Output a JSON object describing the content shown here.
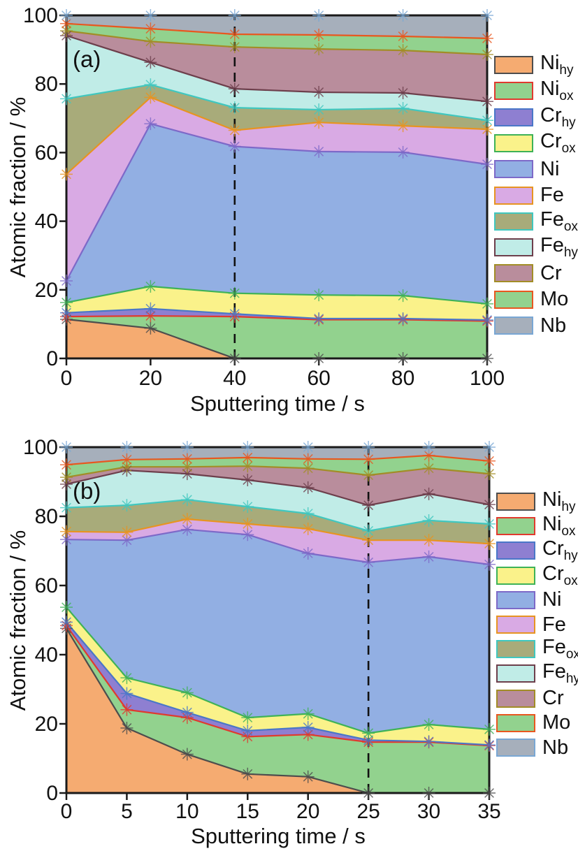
{
  "chart_data": [
    {
      "type": "area",
      "stacked": true,
      "panel_label": "(a)",
      "xlabel": "Sputtering time / s",
      "ylabel": "Atomic fraction / %",
      "xlim": [
        0,
        100
      ],
      "ylim": [
        0,
        100
      ],
      "grid": false,
      "legend_position": "right",
      "x": [
        0,
        20,
        40,
        60,
        80,
        100
      ],
      "x_ticks": [
        0,
        20,
        40,
        60,
        80,
        100
      ],
      "y_ticks": [
        0,
        20,
        40,
        60,
        80,
        100
      ],
      "guideline_x": 40,
      "series": [
        {
          "name": "Ni_hy",
          "label": "Ni",
          "sub": "hy",
          "fill": "#f5ab71",
          "line": "#4d4d4d",
          "values": [
            11.4,
            8.8,
            0,
            0,
            0,
            0
          ]
        },
        {
          "name": "Ni_ox",
          "label": "Ni",
          "sub": "ox",
          "fill": "#92d28e",
          "line": "#e03a2e",
          "values": [
            0.8,
            3.6,
            12.2,
            11.3,
            11.3,
            10.9
          ]
        },
        {
          "name": "Cr_hy",
          "label": "Cr",
          "sub": "hy",
          "fill": "#8e7fd1",
          "line": "#4a77c8",
          "values": [
            1.1,
            2.1,
            0.8,
            0.3,
            0.3,
            0.3
          ]
        },
        {
          "name": "Cr_ox",
          "label": "Cr",
          "sub": "ox",
          "fill": "#faf28a",
          "line": "#3eb257",
          "values": [
            3.0,
            6.5,
            6.0,
            6.9,
            6.7,
            4.7
          ]
        },
        {
          "name": "Ni",
          "label": "Ni",
          "sub": "",
          "fill": "#92afe3",
          "line": "#7d69c8",
          "values": [
            6.3,
            47.4,
            42.8,
            41.8,
            41.8,
            40.7
          ]
        },
        {
          "name": "Fe",
          "label": "Fe",
          "sub": "",
          "fill": "#d9aae4",
          "line": "#e79421",
          "values": [
            31.1,
            7.7,
            4.7,
            8.5,
            7.7,
            10.2
          ]
        },
        {
          "name": "Fe_ox",
          "label": "Fe",
          "sub": "ox",
          "fill": "#a8ab7a",
          "line": "#40c7bf",
          "values": [
            22.0,
            3.7,
            6.6,
            3.7,
            5.1,
            2.6
          ]
        },
        {
          "name": "Fe_hy",
          "label": "Fe",
          "sub": "hy",
          "fill": "#c0ece7",
          "line": "#6d3f4c",
          "values": [
            18.4,
            6.5,
            5.5,
            5.1,
            4.5,
            5.5
          ]
        },
        {
          "name": "Cr",
          "label": "Cr",
          "sub": "",
          "fill": "#b98d9c",
          "line": "#a28d26",
          "values": [
            1.4,
            6.1,
            12.2,
            12.6,
            12.4,
            13.7
          ]
        },
        {
          "name": "Mo",
          "label": "Mo",
          "sub": "",
          "fill": "#92d28e",
          "line": "#e8571f",
          "values": [
            2.1,
            3.7,
            3.7,
            4.1,
            4.1,
            4.7
          ]
        },
        {
          "name": "Nb",
          "label": "Nb",
          "sub": "",
          "fill": "#a6afbb",
          "line": "#79a7d4",
          "values": [
            2.4,
            3.9,
            5.5,
            5.7,
            6.1,
            6.7
          ]
        }
      ]
    },
    {
      "type": "area",
      "stacked": true,
      "panel_label": "(b)",
      "xlabel": "Sputtering time / s",
      "ylabel": "Atomic fraction / %",
      "xlim": [
        0,
        35
      ],
      "ylim": [
        0,
        100
      ],
      "grid": false,
      "legend_position": "right",
      "x": [
        0,
        5,
        10,
        15,
        20,
        25,
        30,
        35
      ],
      "x_ticks": [
        0,
        5,
        10,
        15,
        20,
        25,
        30,
        35
      ],
      "y_ticks": [
        0,
        20,
        40,
        60,
        80,
        100
      ],
      "guideline_x": 25,
      "series": [
        {
          "name": "Ni_hy",
          "label": "Ni",
          "sub": "hy",
          "fill": "#f5ab71",
          "line": "#4d4d4d",
          "values": [
            47.6,
            18.8,
            11.2,
            5.5,
            4.7,
            0,
            0,
            0
          ]
        },
        {
          "name": "Ni_ox",
          "label": "Ni",
          "sub": "ox",
          "fill": "#92d28e",
          "line": "#e03a2e",
          "values": [
            0.8,
            5.3,
            10.6,
            10.8,
            12.2,
            14.7,
            14.7,
            13.7
          ]
        },
        {
          "name": "Cr_hy",
          "label": "Cr",
          "sub": "hy",
          "fill": "#8e7fd1",
          "line": "#4a77c8",
          "values": [
            1.0,
            4.7,
            1.5,
            1.7,
            2.1,
            0.6,
            0.2,
            0.2
          ]
        },
        {
          "name": "Cr_ox",
          "label": "Cr",
          "sub": "ox",
          "fill": "#faf28a",
          "line": "#3eb257",
          "values": [
            4.3,
            4.5,
            5.7,
            3.8,
            3.9,
            2.0,
            4.9,
            4.5
          ]
        },
        {
          "name": "Ni",
          "label": "Ni",
          "sub": "",
          "fill": "#92afe3",
          "line": "#7d69c8",
          "values": [
            19.6,
            39.8,
            47.2,
            52.9,
            46.4,
            49.4,
            48.5,
            47.7
          ]
        },
        {
          "name": "Fe",
          "label": "Fe",
          "sub": "",
          "fill": "#d9aae4",
          "line": "#e79421",
          "values": [
            2.3,
            2.3,
            3.0,
            3.1,
            7.1,
            6.4,
            4.8,
            6.0
          ]
        },
        {
          "name": "Fe_ox",
          "label": "Fe",
          "sub": "ox",
          "fill": "#a8ab7a",
          "line": "#40c7bf",
          "values": [
            6.9,
            7.8,
            5.6,
            5.0,
            4.4,
            2.7,
            5.7,
            5.7
          ]
        },
        {
          "name": "Fe_hy",
          "label": "Fe",
          "sub": "hy",
          "fill": "#c0ece7",
          "line": "#6d3f4c",
          "values": [
            6.8,
            10.1,
            7.5,
            7.7,
            7.5,
            7.4,
            7.7,
            5.6
          ]
        },
        {
          "name": "Cr",
          "label": "Cr",
          "sub": "",
          "fill": "#b98d9c",
          "line": "#a28d26",
          "values": [
            2.0,
            1.0,
            2.0,
            4.0,
            5.6,
            8.7,
            7.4,
            8.9
          ]
        },
        {
          "name": "Mo",
          "label": "Mo",
          "sub": "",
          "fill": "#92d28e",
          "line": "#e8571f",
          "values": [
            3.6,
            2.1,
            2.3,
            2.5,
            2.7,
            4.6,
            3.7,
            3.7
          ]
        },
        {
          "name": "Nb",
          "label": "Nb",
          "sub": "",
          "fill": "#a6afbb",
          "line": "#79a7d4",
          "values": [
            5.1,
            3.6,
            3.4,
            3.0,
            3.4,
            3.5,
            2.4,
            4.0
          ]
        }
      ]
    }
  ]
}
